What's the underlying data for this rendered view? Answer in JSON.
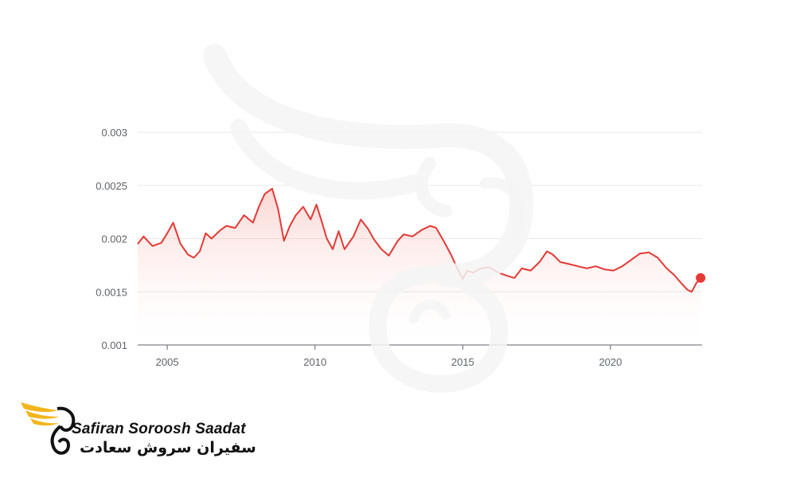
{
  "brand": {
    "name_en": "Safiran Soroosh Saadat",
    "name_fa": "سفیران سروش سعادت",
    "accent_color": "#f2b61c",
    "text_color": "#111111"
  },
  "chart_data": {
    "type": "area",
    "title": "",
    "xlabel": "",
    "ylabel": "",
    "line_color": "#e53935",
    "grid": true,
    "xlim": [
      2004.0,
      2023.1
    ],
    "ylim": [
      0.001,
      0.003
    ],
    "yticks": [
      "0.001",
      "0.0015",
      "0.002",
      "0.0025",
      "0.003"
    ],
    "xticks": [
      "2005",
      "2010",
      "2015",
      "2020"
    ],
    "series": [
      {
        "x": [
          2004.0,
          2004.2,
          2004.5,
          2004.8,
          2005.0,
          2005.2,
          2005.45,
          2005.7,
          2005.9,
          2006.1,
          2006.3,
          2006.5,
          2006.8,
          2007.0,
          2007.3,
          2007.6,
          2007.9,
          2008.1,
          2008.3,
          2008.55,
          2008.75,
          2008.95,
          2009.15,
          2009.35,
          2009.6,
          2009.85,
          2010.05,
          2010.25,
          2010.4,
          2010.6,
          2010.8,
          2011.0,
          2011.3,
          2011.55,
          2011.8,
          2012.0,
          2012.25,
          2012.5,
          2012.8,
          2013.0,
          2013.3,
          2013.6,
          2013.9,
          2014.1,
          2014.35,
          2014.6,
          2014.85,
          2015.0,
          2015.15,
          2015.35,
          2015.6,
          2015.9,
          2016.2,
          2016.5,
          2016.75,
          2017.0,
          2017.3,
          2017.6,
          2017.85,
          2018.05,
          2018.3,
          2018.6,
          2018.9,
          2019.2,
          2019.5,
          2019.8,
          2020.1,
          2020.4,
          2020.7,
          2021.0,
          2021.3,
          2021.6,
          2021.9,
          2022.15,
          2022.4,
          2022.6,
          2022.75,
          2022.9,
          2023.05
        ],
        "y": [
          0.00195,
          0.00202,
          0.00193,
          0.00196,
          0.00205,
          0.00215,
          0.00195,
          0.00185,
          0.00182,
          0.00188,
          0.00205,
          0.002,
          0.00208,
          0.00212,
          0.0021,
          0.00222,
          0.00215,
          0.0023,
          0.00242,
          0.00247,
          0.00228,
          0.00198,
          0.00212,
          0.00222,
          0.0023,
          0.00218,
          0.00232,
          0.00214,
          0.002,
          0.0019,
          0.00207,
          0.0019,
          0.00202,
          0.00218,
          0.00209,
          0.00199,
          0.0019,
          0.00184,
          0.00198,
          0.00204,
          0.00202,
          0.00208,
          0.00212,
          0.0021,
          0.00198,
          0.00185,
          0.0017,
          0.00162,
          0.0017,
          0.00168,
          0.00172,
          0.00173,
          0.00168,
          0.00165,
          0.00163,
          0.00172,
          0.0017,
          0.00178,
          0.00188,
          0.00185,
          0.00178,
          0.00176,
          0.00174,
          0.00172,
          0.00174,
          0.00171,
          0.0017,
          0.00174,
          0.0018,
          0.00186,
          0.00187,
          0.00182,
          0.00172,
          0.00166,
          0.00158,
          0.00152,
          0.0015,
          0.00158,
          0.00163
        ]
      }
    ],
    "end_point": {
      "x": 2023.05,
      "y": 0.00163
    }
  }
}
